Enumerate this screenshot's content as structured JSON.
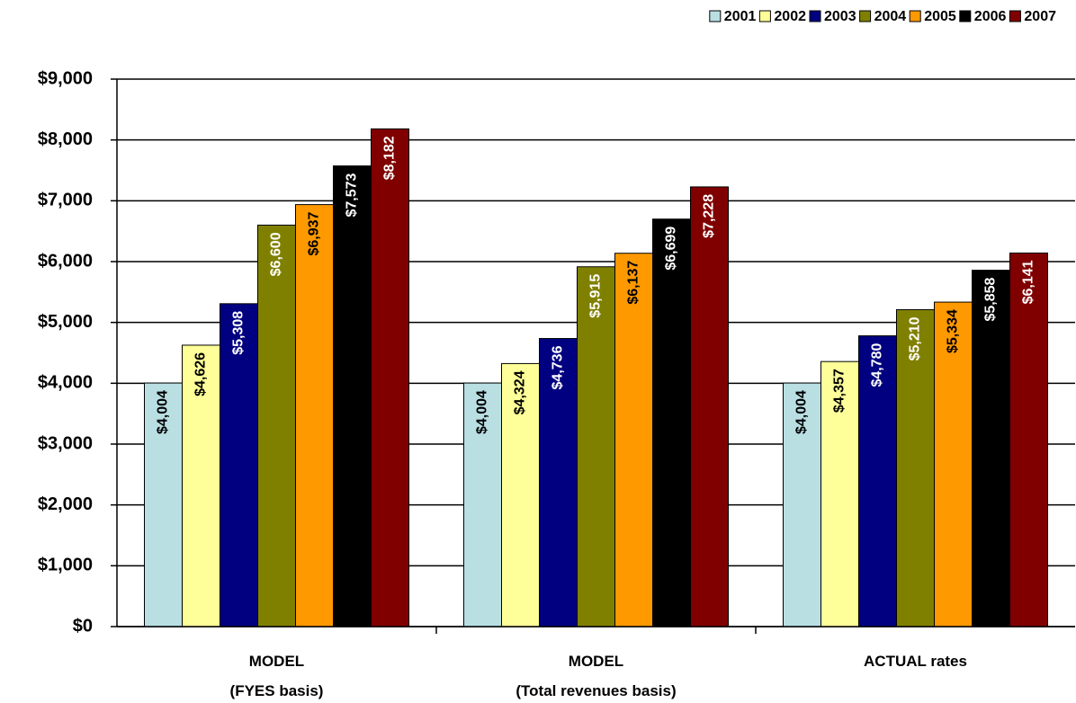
{
  "chart_data": {
    "type": "bar",
    "categories": [
      "MODEL\n(FYES basis)",
      "MODEL\n(Total revenues basis)",
      "ACTUAL rates"
    ],
    "series": [
      {
        "name": "2001",
        "color": "#b9dfe3",
        "values": [
          4004,
          4004,
          4004
        ],
        "value_labels": [
          "$4,004",
          "$4,004",
          "$4,004"
        ]
      },
      {
        "name": "2002",
        "color": "#ffff99",
        "values": [
          4626,
          4324,
          4357
        ],
        "value_labels": [
          "$4,626",
          "$4,324",
          "$4,357"
        ]
      },
      {
        "name": "2003",
        "color": "#000080",
        "values": [
          5308,
          4736,
          4780
        ],
        "value_labels": [
          "$5,308",
          "$4,736",
          "$4,780"
        ]
      },
      {
        "name": "2004",
        "color": "#808000",
        "values": [
          6600,
          5915,
          5210
        ],
        "value_labels": [
          "$6,600",
          "$5,915",
          "$5,210"
        ]
      },
      {
        "name": "2005",
        "color": "#ff9900",
        "values": [
          6937,
          6137,
          5334
        ],
        "value_labels": [
          "$6,937",
          "$6,137",
          "$5,334"
        ]
      },
      {
        "name": "2006",
        "color": "#000000",
        "values": [
          7573,
          6699,
          5858
        ],
        "value_labels": [
          "$7,573",
          "$6,699",
          "$5,858"
        ]
      },
      {
        "name": "2007",
        "color": "#800000",
        "values": [
          8182,
          7228,
          6141
        ],
        "value_labels": [
          "$8,182",
          "$7,228",
          "$6,141"
        ]
      }
    ],
    "ylim": [
      0,
      9000
    ],
    "yticks": [
      {
        "value": 0,
        "label": "$0"
      },
      {
        "value": 1000,
        "label": "$1,000"
      },
      {
        "value": 2000,
        "label": "$2,000"
      },
      {
        "value": 3000,
        "label": "$3,000"
      },
      {
        "value": 4000,
        "label": "$4,000"
      },
      {
        "value": 5000,
        "label": "$5,000"
      },
      {
        "value": 6000,
        "label": "$6,000"
      },
      {
        "value": 7000,
        "label": "$7,000"
      },
      {
        "value": 8000,
        "label": "$8,000"
      },
      {
        "value": 9000,
        "label": "$9,000"
      }
    ],
    "grid": true,
    "legend": "top-right"
  }
}
